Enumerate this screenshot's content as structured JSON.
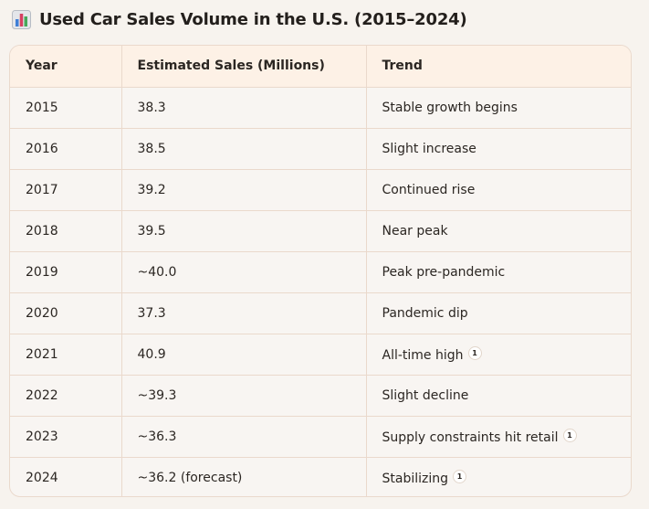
{
  "title": "Used Car Sales Volume in the U.S. (2015–2024)",
  "title_icon": "bar-chart-icon",
  "columns": [
    "Year",
    "Estimated Sales (Millions)",
    "Trend"
  ],
  "rows": [
    {
      "year": "2015",
      "sales": "38.3",
      "trend": "Stable growth begins",
      "citation": ""
    },
    {
      "year": "2016",
      "sales": "38.5",
      "trend": "Slight increase",
      "citation": ""
    },
    {
      "year": "2017",
      "sales": "39.2",
      "trend": "Continued rise",
      "citation": ""
    },
    {
      "year": "2018",
      "sales": "39.5",
      "trend": "Near peak",
      "citation": ""
    },
    {
      "year": "2019",
      "sales": "~40.0",
      "trend": "Peak pre-pandemic",
      "citation": ""
    },
    {
      "year": "2020",
      "sales": "37.3",
      "trend": "Pandemic dip",
      "citation": ""
    },
    {
      "year": "2021",
      "sales": "40.9",
      "trend": "All-time high",
      "citation": "1"
    },
    {
      "year": "2022",
      "sales": "~39.3",
      "trend": "Slight decline",
      "citation": ""
    },
    {
      "year": "2023",
      "sales": "~36.3",
      "trend": "Supply constraints hit retail",
      "citation": "1"
    },
    {
      "year": "2024",
      "sales": "~36.2 (forecast)",
      "trend": "Stabilizing",
      "citation": "1"
    }
  ],
  "colors": {
    "background": "#f7f3ee",
    "header_bg": "#fdf1e6",
    "border": "#ead9cc",
    "text": "#2b2622"
  }
}
